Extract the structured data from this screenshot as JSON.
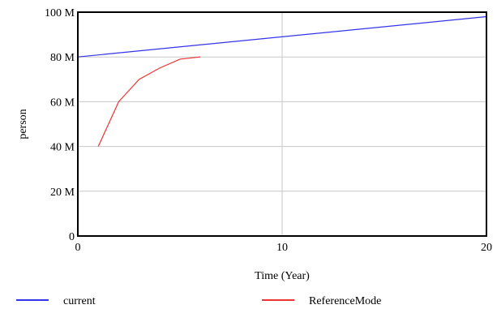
{
  "chart_data": {
    "type": "line",
    "xlabel": "Time (Year)",
    "ylabel": "person",
    "xlim": [
      0,
      20
    ],
    "ylim": [
      0,
      100
    ],
    "x_ticks": [
      0,
      10,
      20
    ],
    "y_ticks": [
      0,
      20,
      40,
      60,
      80,
      100
    ],
    "y_tick_labels": [
      "0",
      "20 M",
      "40 M",
      "60 M",
      "80 M",
      "100 M"
    ],
    "grid": true,
    "legend_position": "bottom",
    "series": [
      {
        "name": "current",
        "color": "#3333ee",
        "x": [
          0,
          20
        ],
        "y": [
          80,
          98
        ]
      },
      {
        "name": "ReferenceMode",
        "color": "#ee3333",
        "x": [
          1,
          2,
          3,
          4,
          5,
          6
        ],
        "y": [
          40,
          60,
          70,
          75,
          79,
          80
        ]
      }
    ]
  }
}
